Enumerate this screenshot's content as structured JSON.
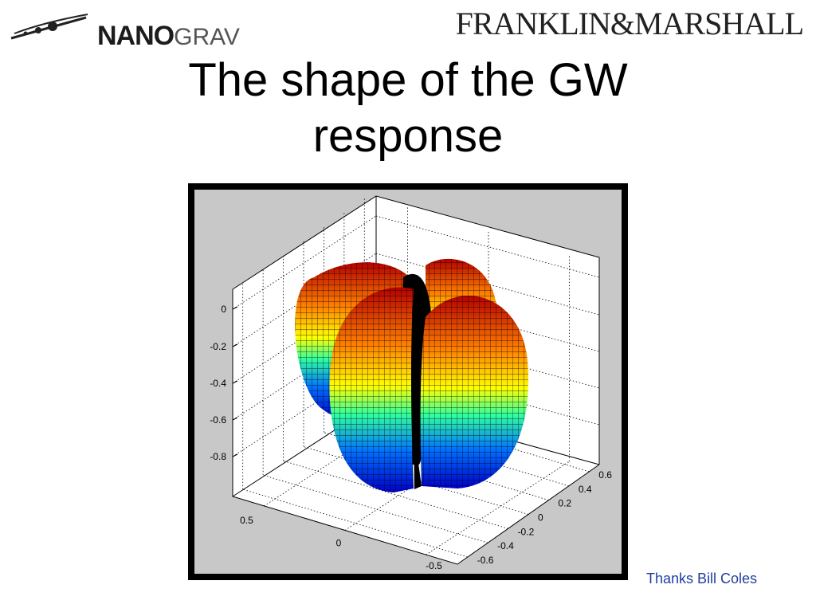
{
  "logos": {
    "left_name": "nanograv-logo",
    "left_parts": [
      "NANO",
      "GRAV"
    ],
    "right_name": "franklin-marshall-logo",
    "right_text": "FRANKLIN&MARSHALL"
  },
  "slide": {
    "title_line1": "The shape of the GW",
    "title_line2": "response",
    "credit": "Thanks Bill Coles"
  },
  "chart_data": {
    "type": "surface",
    "title": "",
    "z_ticks": [
      "0",
      "-0.2",
      "-0.4",
      "-0.6",
      "-0.8"
    ],
    "x_ticks": [
      "0.5",
      "0",
      "-0.5"
    ],
    "y_ticks": [
      "0.6",
      "0.4",
      "0.2",
      "0",
      "-0.2",
      "-0.4",
      "-0.6"
    ],
    "colormap": [
      "#0000c8",
      "#00a0ff",
      "#40ff80",
      "#ffff00",
      "#ff8000",
      "#c80000"
    ],
    "background": "#c8c8c8",
    "grid": true
  }
}
